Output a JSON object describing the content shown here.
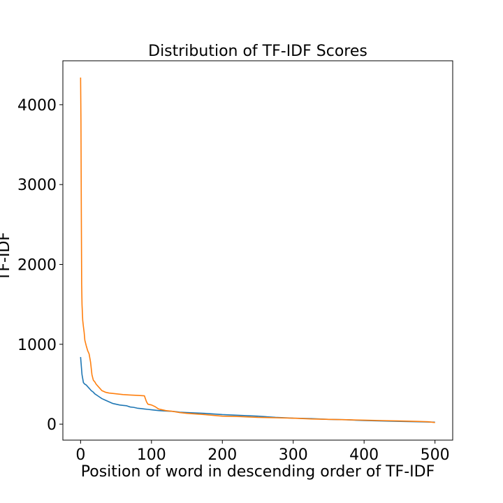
{
  "chart_data": {
    "type": "line",
    "title": "Distribution of TF-IDF Scores",
    "xlabel": "Position of word in descending order of TF-IDF",
    "ylabel": "TF-IDF",
    "xlim": [
      -25,
      525
    ],
    "ylim": [
      -200,
      4550
    ],
    "xticks": [
      0,
      100,
      200,
      300,
      400,
      500
    ],
    "yticks": [
      0,
      1000,
      2000,
      3000,
      4000
    ],
    "grid": false,
    "legend": "none",
    "series": [
      {
        "color": "#1f77b4",
        "x": [
          0,
          2,
          4,
          6,
          8,
          10,
          12,
          15,
          18,
          20,
          25,
          30,
          35,
          40,
          45,
          50,
          55,
          60,
          65,
          70,
          75,
          80,
          85,
          90,
          95,
          100,
          110,
          120,
          130,
          140,
          150,
          175,
          200,
          225,
          250,
          275,
          300,
          325,
          350,
          375,
          400,
          425,
          450,
          475,
          500
        ],
        "y": [
          840,
          620,
          520,
          500,
          490,
          470,
          450,
          420,
          400,
          380,
          350,
          320,
          300,
          280,
          260,
          250,
          240,
          235,
          230,
          215,
          210,
          200,
          195,
          190,
          185,
          180,
          170,
          165,
          160,
          150,
          145,
          135,
          120,
          110,
          100,
          85,
          75,
          70,
          60,
          55,
          45,
          40,
          35,
          30,
          25
        ]
      },
      {
        "color": "#ff7f0e",
        "x": [
          0,
          0.5,
          1,
          1.5,
          2,
          3,
          4,
          5,
          6,
          8,
          10,
          12,
          14,
          16,
          18,
          20,
          22,
          25,
          28,
          30,
          35,
          40,
          50,
          60,
          70,
          80,
          90,
          93,
          95,
          100,
          105,
          110,
          120,
          130,
          140,
          150,
          175,
          200,
          225,
          250,
          275,
          300,
          325,
          350,
          375,
          400,
          425,
          450,
          475,
          490,
          500
        ],
        "y": [
          4340,
          3800,
          2700,
          1750,
          1500,
          1300,
          1220,
          1150,
          1050,
          980,
          920,
          880,
          780,
          620,
          550,
          530,
          500,
          470,
          440,
          420,
          400,
          390,
          380,
          370,
          365,
          360,
          355,
          280,
          250,
          240,
          220,
          190,
          170,
          160,
          145,
          135,
          120,
          100,
          95,
          85,
          80,
          75,
          65,
          60,
          55,
          50,
          45,
          40,
          35,
          30,
          20
        ]
      }
    ]
  }
}
